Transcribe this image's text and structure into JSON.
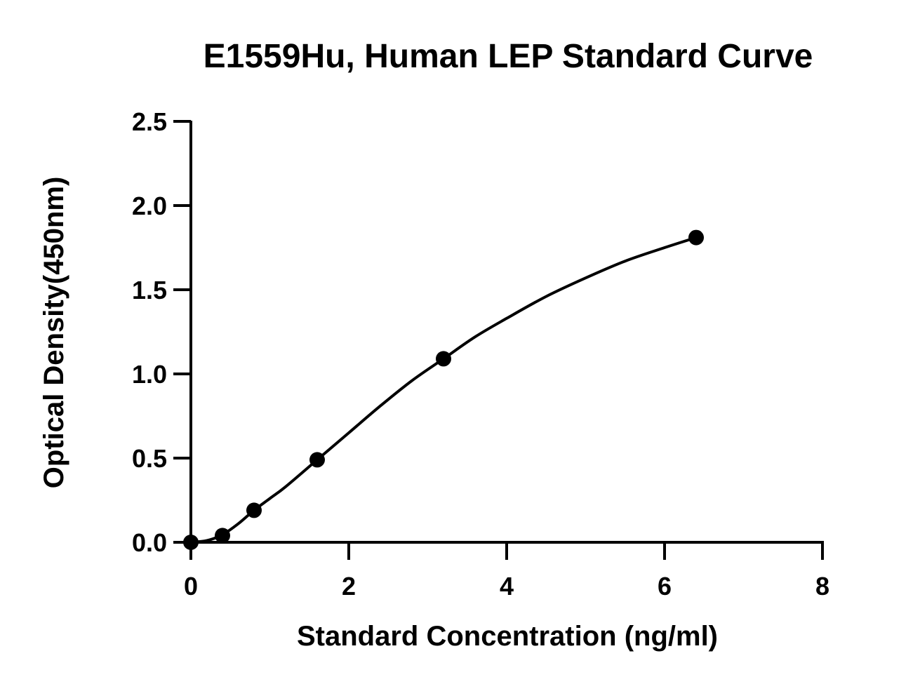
{
  "chart_data": {
    "type": "scatter",
    "title": "E1559Hu, Human LEP Standard Curve",
    "xlabel": "Standard Concentration (ng/ml)",
    "ylabel": "Optical Density(450nm)",
    "xlim": [
      0,
      8
    ],
    "ylim": [
      0,
      2.5
    ],
    "x_ticks": [
      "0",
      "2",
      "4",
      "6",
      "8"
    ],
    "y_ticks": [
      "0.0",
      "0.5",
      "1.0",
      "1.5",
      "2.0",
      "2.5"
    ],
    "grid": false,
    "points": {
      "x": [
        0,
        0.4,
        0.8,
        1.6,
        3.2,
        6.4
      ],
      "y": [
        0.0,
        0.04,
        0.19,
        0.49,
        1.09,
        1.81
      ]
    },
    "fit_curve": {
      "x": [
        0,
        0.2,
        0.4,
        0.6,
        0.8,
        1.0,
        1.2,
        1.6,
        2.0,
        2.4,
        2.8,
        3.2,
        3.6,
        4.0,
        4.5,
        5.0,
        5.5,
        6.0,
        6.4
      ],
      "y": [
        0.0,
        0.01,
        0.045,
        0.11,
        0.19,
        0.26,
        0.33,
        0.49,
        0.65,
        0.81,
        0.96,
        1.09,
        1.22,
        1.33,
        1.46,
        1.57,
        1.67,
        1.75,
        1.81
      ]
    },
    "colors": {
      "marker": "#000000",
      "line": "#000000",
      "axis": "#000000"
    }
  }
}
